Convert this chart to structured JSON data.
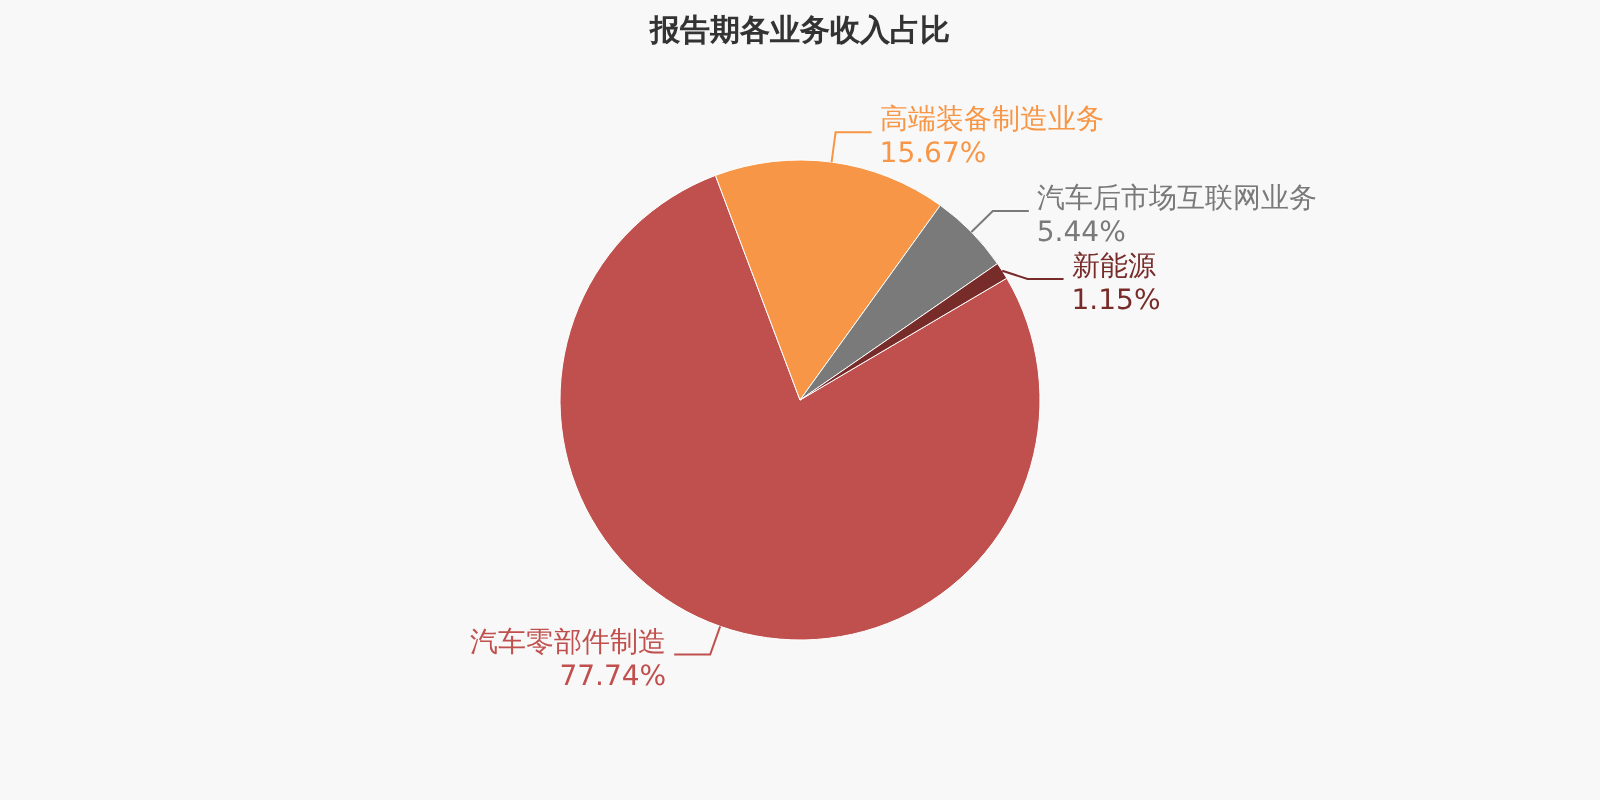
{
  "chart_data": {
    "type": "pie",
    "title": "报告期各业务收入占比",
    "categories": [
      "汽车零部件制造",
      "高端装备制造业务",
      "汽车后市场互联网业务",
      "新能源"
    ],
    "values": [
      77.74,
      15.67,
      5.44,
      1.15
    ],
    "colors": [
      "#c0504d",
      "#f79646",
      "#7a7a7a",
      "#772c2a"
    ],
    "value_labels": [
      "77.74%",
      "15.67%",
      "5.44%",
      "1.15%"
    ]
  }
}
